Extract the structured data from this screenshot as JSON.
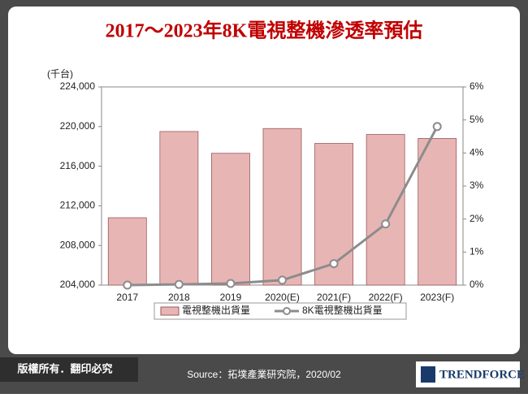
{
  "chart_data": {
    "type": "bar-line",
    "title": "2017～2023年8K電視整機滲透率預估",
    "y_label": "(千台)",
    "categories": [
      "2017",
      "2018",
      "2019",
      "2020(E)",
      "2021(F)",
      "2022(F)",
      "2023(F)"
    ],
    "series": [
      {
        "name": "電視整機出貨量",
        "type": "bar",
        "color": "#e8b5b5",
        "values": [
          210800,
          219500,
          217300,
          219800,
          218300,
          219200,
          218800
        ]
      },
      {
        "name": "8K電視整機出貨量",
        "type": "line",
        "axis": "y2",
        "color": "#8c8c8c",
        "values": [
          0.0,
          0.02,
          0.05,
          0.15,
          0.65,
          1.85,
          4.8
        ]
      }
    ],
    "ylim": [
      204000,
      224000
    ],
    "yticks": [
      {
        "value": 204000,
        "label": "204,000"
      },
      {
        "value": 208000,
        "label": "208,000"
      },
      {
        "value": 212000,
        "label": "212,000"
      },
      {
        "value": 216000,
        "label": "216,000"
      },
      {
        "value": 220000,
        "label": "220,000"
      },
      {
        "value": 224000,
        "label": "224,000"
      }
    ],
    "y2lim": [
      0,
      6
    ],
    "y2ticks": [
      {
        "value": 0,
        "label": "0%"
      },
      {
        "value": 1,
        "label": "1%"
      },
      {
        "value": 2,
        "label": "2%"
      },
      {
        "value": 3,
        "label": "3%"
      },
      {
        "value": 4,
        "label": "4%"
      },
      {
        "value": 5,
        "label": "5%"
      },
      {
        "value": 6,
        "label": "6%"
      }
    ],
    "legend": "bottom"
  },
  "footer": {
    "rights": "版權所有．翻印必究",
    "source": "Source：拓墣產業研究院，2020/02",
    "logo": "TRENDFORCE"
  }
}
